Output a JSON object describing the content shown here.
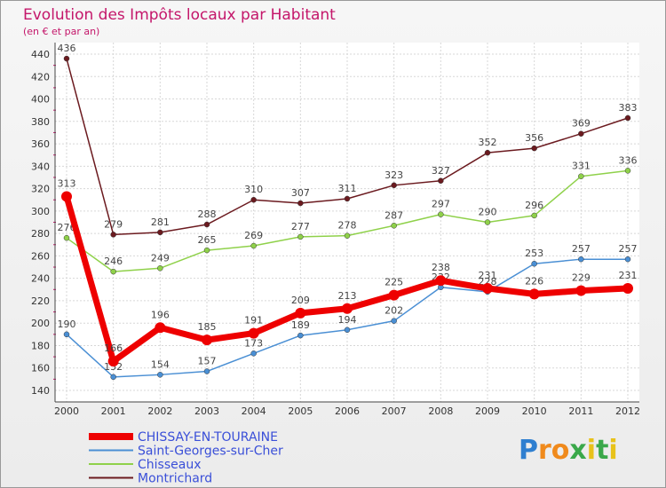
{
  "chart_data": {
    "type": "line",
    "title": "Evolution des Impôts locaux par Habitant",
    "subtitle": "(en € et par an)",
    "xlabel": "",
    "ylabel": "",
    "ylim": [
      140,
      440
    ],
    "ytick_step": 20,
    "grid": true,
    "legend_position": "bottom-left",
    "categories": [
      "2000",
      "2001",
      "2002",
      "2003",
      "2004",
      "2005",
      "2006",
      "2007",
      "2008",
      "2009",
      "2010",
      "2011",
      "2012"
    ],
    "series": [
      {
        "name": "Montrichard",
        "color": "#6b1a1f",
        "width": 1.5,
        "values": [
          436,
          279,
          281,
          288,
          310,
          307,
          311,
          323,
          327,
          352,
          356,
          369,
          383
        ]
      },
      {
        "name": "Chisseaux",
        "color": "#8fd14a",
        "width": 1.5,
        "values": [
          276,
          246,
          249,
          265,
          269,
          277,
          278,
          287,
          297,
          290,
          296,
          331,
          336
        ]
      },
      {
        "name": "Saint-Georges-sur-Cher",
        "color": "#4a8fd4",
        "width": 1.5,
        "values": [
          190,
          152,
          154,
          157,
          173,
          189,
          194,
          202,
          232,
          228,
          253,
          257,
          257
        ]
      },
      {
        "name": "CHISSAY-EN-TOURAINE",
        "color": "#ee0000",
        "width": 7,
        "values": [
          313,
          166,
          196,
          185,
          191,
          209,
          213,
          225,
          238,
          231,
          226,
          229,
          231
        ]
      }
    ],
    "legend_order": [
      "CHISSAY-EN-TOURAINE",
      "Saint-Georges-sur-Cher",
      "Chisseaux",
      "Montrichard"
    ]
  },
  "logo": {
    "letters": [
      "P",
      "r",
      "o",
      "x",
      "i",
      "t",
      "i"
    ],
    "colors": [
      "#2f7fd0",
      "#f08a1c",
      "#f08a1c",
      "#3aa84a",
      "#e8c21a",
      "#3aa84a",
      "#e8c21a"
    ]
  }
}
